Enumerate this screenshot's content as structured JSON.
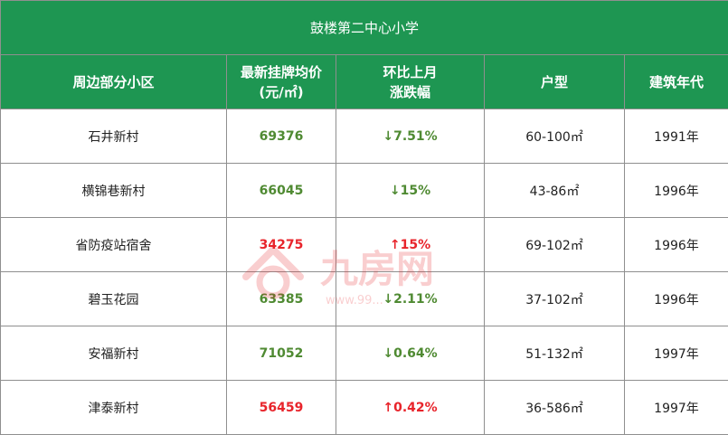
{
  "title": "鼓楼第二中心小学",
  "headers": {
    "community": "周边部分小区",
    "price_line1": "最新挂牌均价",
    "price_line2": "(元/㎡)",
    "change_line1": "环比上月",
    "change_line2": "涨跌幅",
    "layout": "户型",
    "year": "建筑年代"
  },
  "rows": [
    {
      "community": "石井新村",
      "price": "69376",
      "price_trend": "down",
      "change": "↓7.51%",
      "change_trend": "down",
      "layout": "60-100㎡",
      "year": "1991年"
    },
    {
      "community": "横锦巷新村",
      "price": "66045",
      "price_trend": "down",
      "change": "↓15%",
      "change_trend": "down",
      "layout": "43-86㎡",
      "year": "1996年"
    },
    {
      "community": "省防疫站宿舍",
      "price": "34275",
      "price_trend": "up",
      "change": "↑15%",
      "change_trend": "up",
      "layout": "69-102㎡",
      "year": "1996年"
    },
    {
      "community": "碧玉花园",
      "price": "63385",
      "price_trend": "down",
      "change": "↓2.11%",
      "change_trend": "down",
      "layout": "37-102㎡",
      "year": "1996年"
    },
    {
      "community": "安福新村",
      "price": "71052",
      "price_trend": "down",
      "change": "↓0.64%",
      "change_trend": "down",
      "layout": "51-132㎡",
      "year": "1997年"
    },
    {
      "community": "津泰新村",
      "price": "56459",
      "price_trend": "up",
      "change": "↑0.42%",
      "change_trend": "up",
      "layout": "36-586㎡",
      "year": "1997年"
    }
  ],
  "watermark": {
    "text": "九房网",
    "url": "www.99..."
  },
  "colors": {
    "header_bg": "#1e9652",
    "down": "#4f8a32",
    "up": "#e8242b"
  }
}
